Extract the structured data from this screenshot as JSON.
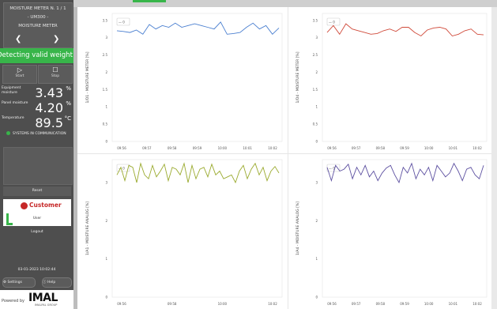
{
  "sidebar": {
    "device": {
      "title": "MOISTURE METER N. 1 / 1",
      "model": "- UM300 -",
      "type": "MOISTURE METER",
      "prev_icon": "chevron-left-icon",
      "next_icon": "chevron-right-icon"
    },
    "status_banner": "Detecting valid weight",
    "status_color": "#38b54a",
    "start": {
      "icon": "play-icon",
      "label": "Start"
    },
    "stop": {
      "icon": "stop-icon",
      "label": "Stop"
    },
    "metrics": [
      {
        "label": "Equipment moisture",
        "value": "3.43",
        "unit": "%"
      },
      {
        "label": "Panel moisture",
        "value": "4.20",
        "unit": "%"
      },
      {
        "label": "Temperature",
        "value": "89.5",
        "unit": "°C"
      }
    ],
    "comm_status": "SYSTEMS IN COMMUNICATION",
    "reset_label": "Reset",
    "customer": {
      "logo_text": "Customer",
      "user_label": "User"
    },
    "logout_label": "Logout",
    "datetime": "03-01-2023 10:02:44",
    "settings_label": "Settings",
    "help_label": "Help",
    "brand": {
      "powered": "Powered by",
      "name": "IMAL",
      "group": "IMALPAL GROUP"
    }
  },
  "charts": [
    {
      "id": "top-left",
      "ylabel": "1/D1 - MOISTURE METER [%]",
      "yticks": [
        "3.5",
        "3",
        "2.5",
        "2",
        "1.5",
        "1",
        "0.5",
        "0"
      ],
      "xticks": [
        "09:56",
        "09:57",
        "09:58",
        "09:59",
        "10:00",
        "10:01",
        "10:02"
      ],
      "color": "#4a7fd0",
      "badge": "— 0"
    },
    {
      "id": "top-right",
      "ylabel": "1/D4 - MOISTURE METER [%]",
      "yticks": [
        "3.5",
        "3",
        "2.5",
        "2",
        "1.5",
        "1",
        "0.5",
        "0"
      ],
      "xticks": [
        "09:56",
        "09:57",
        "09:58",
        "09:59",
        "10:00",
        "10:01",
        "10:02"
      ],
      "color": "#d04a3a",
      "badge": "— 0"
    },
    {
      "id": "bottom-left",
      "ylabel": "1/A1 - MOISTURE ANALOG [%]",
      "yticks": [
        "3",
        "2",
        "1",
        "0"
      ],
      "xticks": [
        "09:56",
        "09:58",
        "10:00",
        "10:02"
      ],
      "color": "#9aaa2e",
      "badge": "— 0"
    },
    {
      "id": "bottom-right",
      "ylabel": "1/A4 - MOISTURE ANALOG [%]",
      "yticks": [
        "3",
        "2",
        "1",
        "0"
      ],
      "xticks": [
        "09:56",
        "09:57",
        "09:58",
        "09:59",
        "10:00",
        "10:01",
        "10:02"
      ],
      "color": "#5c4fa0",
      "badge": "— 0"
    }
  ],
  "chart_data": [
    {
      "type": "line",
      "ylim": [
        0,
        3.7
      ],
      "series": [
        {
          "values": [
            3.2,
            3.18,
            3.15,
            3.22,
            3.1,
            3.38,
            3.25,
            3.35,
            3.3,
            3.42,
            3.3,
            3.35,
            3.4,
            3.35,
            3.3,
            3.25,
            3.45,
            3.1,
            3.12,
            3.15,
            3.3,
            3.42,
            3.25,
            3.35,
            3.1,
            3.28
          ]
        }
      ]
    },
    {
      "type": "line",
      "ylim": [
        0,
        3.7
      ],
      "series": [
        {
          "values": [
            3.15,
            3.35,
            3.1,
            3.4,
            3.25,
            3.2,
            3.15,
            3.1,
            3.12,
            3.2,
            3.25,
            3.18,
            3.3,
            3.3,
            3.15,
            3.05,
            3.22,
            3.28,
            3.3,
            3.25,
            3.05,
            3.1,
            3.2,
            3.25,
            3.1,
            3.08
          ]
        }
      ]
    },
    {
      "type": "line",
      "ylim": [
        0,
        3.6
      ],
      "series": [
        {
          "values": [
            3.2,
            3.4,
            3.05,
            3.45,
            3.4,
            3.0,
            3.5,
            3.2,
            3.1,
            3.45,
            3.15,
            3.3,
            3.48,
            3.05,
            3.4,
            3.35,
            3.2,
            3.5,
            3.0,
            3.45,
            3.1,
            3.35,
            3.4,
            3.15,
            3.48,
            3.2,
            3.3,
            3.1,
            3.15,
            3.2,
            3.0,
            3.3,
            3.45,
            3.1,
            3.35,
            3.5,
            3.2,
            3.4,
            3.05,
            3.3,
            3.42,
            3.25
          ]
        }
      ]
    },
    {
      "type": "line",
      "ylim": [
        0,
        3.6
      ],
      "series": [
        {
          "values": [
            3.4,
            3.05,
            3.45,
            3.3,
            3.35,
            3.48,
            3.1,
            3.4,
            3.2,
            3.45,
            3.15,
            3.3,
            3.05,
            3.25,
            3.38,
            3.45,
            3.2,
            3.0,
            3.4,
            3.25,
            3.5,
            3.1,
            3.35,
            3.2,
            3.4,
            3.05,
            3.45,
            3.3,
            3.15,
            3.25,
            3.5,
            3.3,
            3.05,
            3.35,
            3.4,
            3.2,
            3.1,
            3.45
          ]
        }
      ]
    }
  ]
}
